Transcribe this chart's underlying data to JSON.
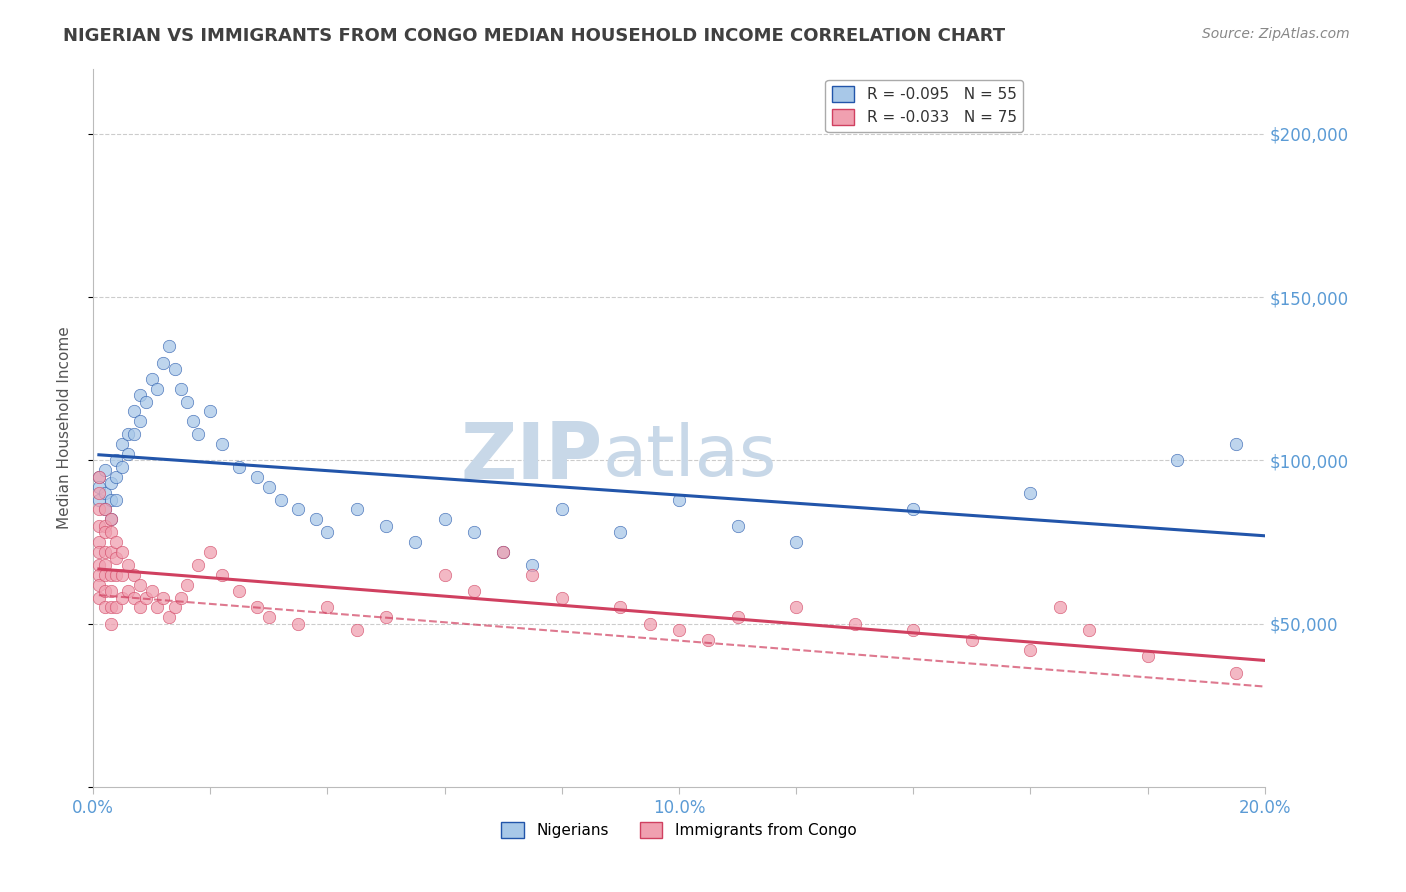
{
  "title": "NIGERIAN VS IMMIGRANTS FROM CONGO MEDIAN HOUSEHOLD INCOME CORRELATION CHART",
  "source": "Source: ZipAtlas.com",
  "ylabel": "Median Household Income",
  "series": [
    {
      "name": "Nigerians",
      "R": -0.095,
      "N": 55,
      "color": "#a8c8e8",
      "line_color": "#2255aa",
      "line_style": "solid",
      "points_x": [
        0.001,
        0.001,
        0.001,
        0.002,
        0.002,
        0.002,
        0.003,
        0.003,
        0.003,
        0.004,
        0.004,
        0.004,
        0.005,
        0.005,
        0.006,
        0.006,
        0.007,
        0.007,
        0.008,
        0.008,
        0.009,
        0.01,
        0.011,
        0.012,
        0.013,
        0.014,
        0.015,
        0.016,
        0.017,
        0.018,
        0.02,
        0.022,
        0.025,
        0.028,
        0.03,
        0.032,
        0.035,
        0.038,
        0.04,
        0.045,
        0.05,
        0.055,
        0.06,
        0.065,
        0.07,
        0.075,
        0.08,
        0.09,
        0.1,
        0.11,
        0.12,
        0.14,
        0.16,
        0.185,
        0.195
      ],
      "points_y": [
        88000,
        95000,
        92000,
        90000,
        85000,
        97000,
        93000,
        88000,
        82000,
        100000,
        95000,
        88000,
        105000,
        98000,
        108000,
        102000,
        115000,
        108000,
        120000,
        112000,
        118000,
        125000,
        122000,
        130000,
        135000,
        128000,
        122000,
        118000,
        112000,
        108000,
        115000,
        105000,
        98000,
        95000,
        92000,
        88000,
        85000,
        82000,
        78000,
        85000,
        80000,
        75000,
        82000,
        78000,
        72000,
        68000,
        85000,
        78000,
        88000,
        80000,
        75000,
        85000,
        90000,
        100000,
        105000
      ]
    },
    {
      "name": "Immigrants from Congo",
      "R": -0.033,
      "N": 75,
      "color": "#f0a0b0",
      "line_color": "#d04060",
      "line_style": "solid",
      "points_x": [
        0.001,
        0.001,
        0.001,
        0.001,
        0.001,
        0.001,
        0.001,
        0.001,
        0.001,
        0.001,
        0.002,
        0.002,
        0.002,
        0.002,
        0.002,
        0.002,
        0.002,
        0.002,
        0.003,
        0.003,
        0.003,
        0.003,
        0.003,
        0.003,
        0.003,
        0.004,
        0.004,
        0.004,
        0.004,
        0.005,
        0.005,
        0.005,
        0.006,
        0.006,
        0.007,
        0.007,
        0.008,
        0.008,
        0.009,
        0.01,
        0.011,
        0.012,
        0.013,
        0.014,
        0.015,
        0.016,
        0.018,
        0.02,
        0.022,
        0.025,
        0.028,
        0.03,
        0.035,
        0.04,
        0.045,
        0.05,
        0.06,
        0.065,
        0.07,
        0.075,
        0.08,
        0.09,
        0.095,
        0.1,
        0.105,
        0.11,
        0.12,
        0.13,
        0.14,
        0.15,
        0.16,
        0.165,
        0.17,
        0.18,
        0.195
      ],
      "points_y": [
        95000,
        90000,
        85000,
        80000,
        75000,
        72000,
        68000,
        65000,
        62000,
        58000,
        85000,
        80000,
        78000,
        72000,
        68000,
        65000,
        60000,
        55000,
        82000,
        78000,
        72000,
        65000,
        60000,
        55000,
        50000,
        75000,
        70000,
        65000,
        55000,
        72000,
        65000,
        58000,
        68000,
        60000,
        65000,
        58000,
        62000,
        55000,
        58000,
        60000,
        55000,
        58000,
        52000,
        55000,
        58000,
        62000,
        68000,
        72000,
        65000,
        60000,
        55000,
        52000,
        50000,
        55000,
        48000,
        52000,
        65000,
        60000,
        72000,
        65000,
        58000,
        55000,
        50000,
        48000,
        45000,
        52000,
        55000,
        50000,
        48000,
        45000,
        42000,
        55000,
        48000,
        40000,
        35000
      ]
    }
  ],
  "xlim": [
    0.0,
    0.2
  ],
  "ylim": [
    0,
    220000
  ],
  "yticks": [
    0,
    50000,
    100000,
    150000,
    200000
  ],
  "ytick_labels": [
    "",
    "$50,000",
    "$100,000",
    "$150,000",
    "$200,000"
  ],
  "watermark_zip": "ZIP",
  "watermark_atlas": "atlas",
  "watermark_color": "#c8d8e8",
  "grid_color": "#cccccc",
  "bg_color": "#ffffff",
  "title_color": "#404040",
  "axis_label_color": "#5b9bd5",
  "source_color": "#888888",
  "ylabel_color": "#555555"
}
